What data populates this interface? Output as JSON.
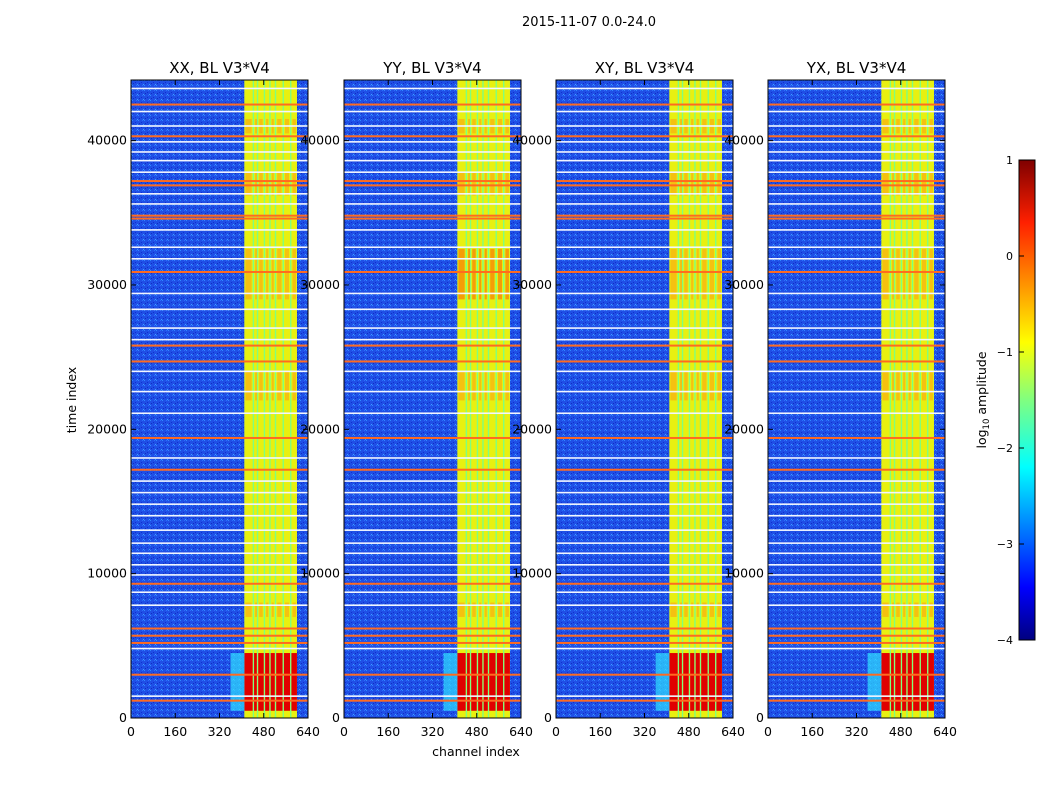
{
  "figure": {
    "suptitle": "2015-11-07 0.0-24.0"
  },
  "chart_data": {
    "type": "heatmap",
    "xlabel": "channel index",
    "ylabel": "time index",
    "xlim": [
      0,
      640
    ],
    "ylim": [
      0,
      44200
    ],
    "x_ticks": [
      0,
      160,
      320,
      480,
      640
    ],
    "y_ticks": [
      0,
      10000,
      20000,
      30000,
      40000
    ],
    "colormap": "jet",
    "colorbar": {
      "label": "log10 amplitude",
      "label_base": "log",
      "label_sub": "10",
      "label_rest": " amplitude",
      "range": [
        -4,
        1
      ],
      "ticks": [
        1,
        0,
        -1,
        -2,
        -3,
        -4
      ],
      "tick_labels": [
        "1",
        "0",
        "−1",
        "−2",
        "−3",
        "−4"
      ]
    },
    "panels": [
      {
        "title": "XX, BL V3*V4",
        "pol": "XX"
      },
      {
        "title": "YY, BL V3*V4",
        "pol": "YY"
      },
      {
        "title": "XY, BL V3*V4",
        "pol": "XY"
      },
      {
        "title": "YX, BL V3*V4",
        "pol": "YX"
      }
    ],
    "features": {
      "bright_channel_range": [
        410,
        600
      ],
      "bright_channel_columns": [
        410,
        440,
        445,
        455,
        460,
        480,
        485,
        500,
        505,
        520,
        525,
        548,
        553,
        575,
        580,
        600
      ],
      "strong_time_range": [
        500,
        4500
      ],
      "flagged_rows_red": [
        1200,
        3000,
        5200,
        5700,
        6200,
        9300,
        17200,
        19400,
        24700,
        25800,
        30900,
        34600,
        34800,
        36900,
        37200,
        40300,
        42500
      ],
      "flagged_rows_white": [
        1500,
        4800,
        7800,
        8700,
        9900,
        10600,
        11400,
        12100,
        13000,
        14000,
        14800,
        15600,
        16400,
        18000,
        21100,
        22600,
        24000,
        26200,
        27000,
        28300,
        29400,
        31800,
        32600,
        33800,
        35600,
        36300,
        37800,
        38600,
        39200,
        39900,
        41000,
        42000,
        43600
      ]
    }
  }
}
